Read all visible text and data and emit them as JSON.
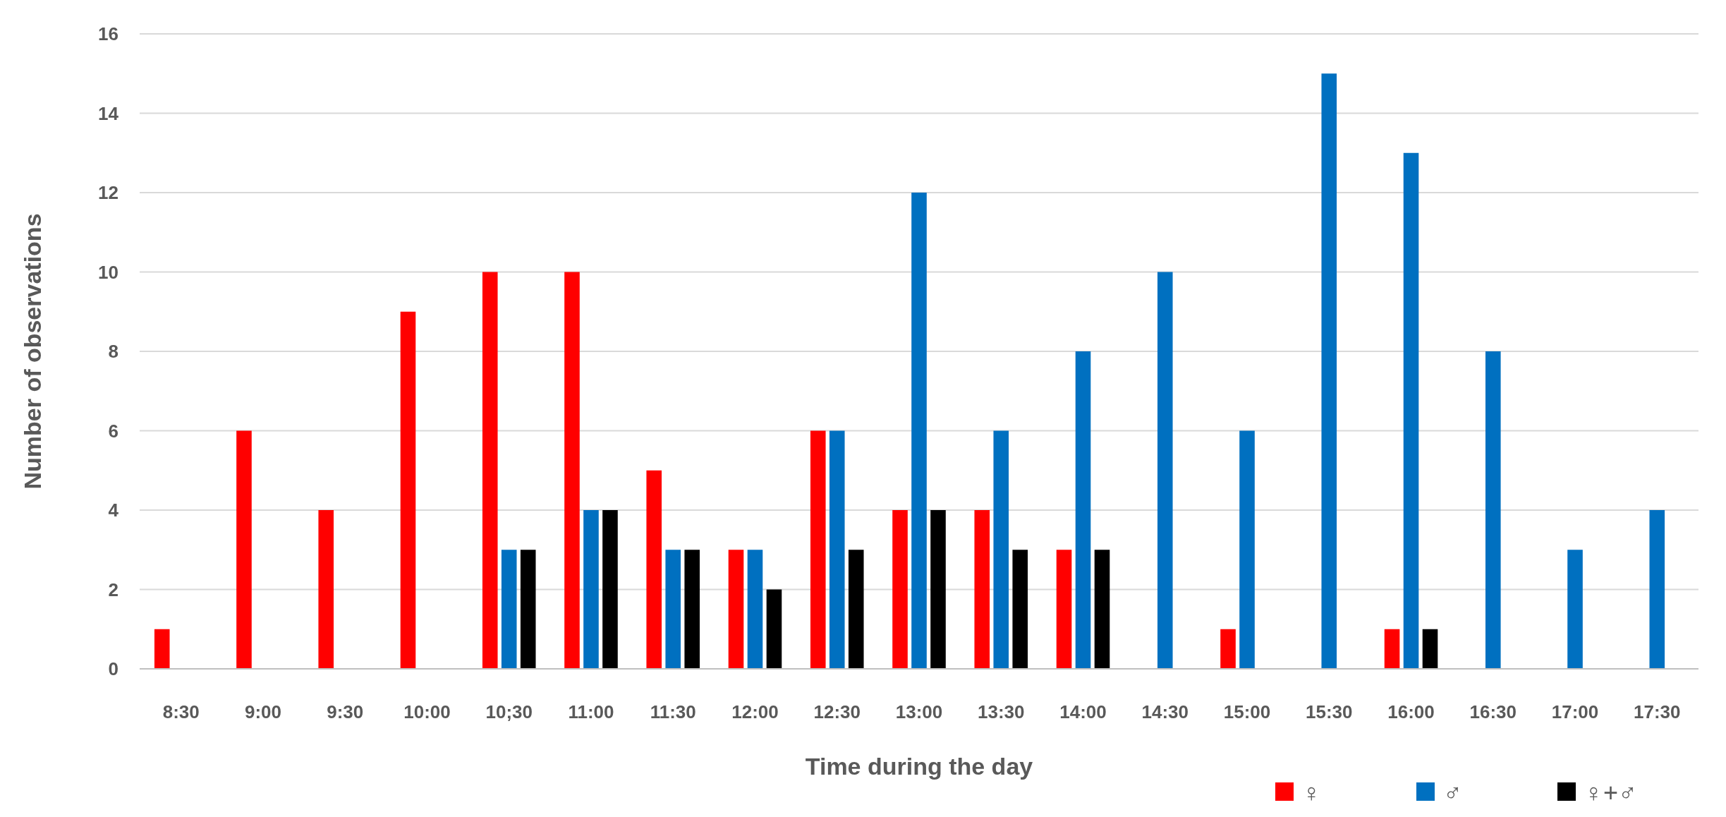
{
  "chart_data": {
    "type": "bar",
    "xlabel": "Time during the day",
    "ylabel": "Number of observations",
    "categories": [
      "8:30",
      "9:00",
      "9:30",
      "10:00",
      "10;30",
      "11:00",
      "11:30",
      "12:00",
      "12:30",
      "13:00",
      "13:30",
      "14:00",
      "14:30",
      "15:00",
      "15:30",
      "16:00",
      "16:30",
      "17:00",
      "17:30"
    ],
    "series": [
      {
        "name": "♀",
        "color": "#ff0000",
        "values": [
          1,
          6,
          4,
          9,
          10,
          10,
          5,
          3,
          6,
          4,
          4,
          3,
          0,
          1,
          0,
          1,
          0,
          0,
          0
        ]
      },
      {
        "name": "♂",
        "color": "#0070c0",
        "values": [
          0,
          0,
          0,
          0,
          3,
          4,
          3,
          3,
          6,
          12,
          6,
          8,
          10,
          6,
          15,
          13,
          8,
          3,
          4
        ]
      },
      {
        "name": "♀+♂",
        "color": "#000000",
        "values": [
          0,
          0,
          0,
          0,
          3,
          4,
          3,
          2,
          3,
          4,
          3,
          3,
          0,
          0,
          0,
          1,
          0,
          0,
          0
        ]
      }
    ],
    "ylim": [
      0,
      16
    ],
    "yticks": [
      0,
      2,
      4,
      6,
      8,
      10,
      12,
      14,
      16
    ],
    "grid": "y",
    "legend": "bottom right"
  }
}
